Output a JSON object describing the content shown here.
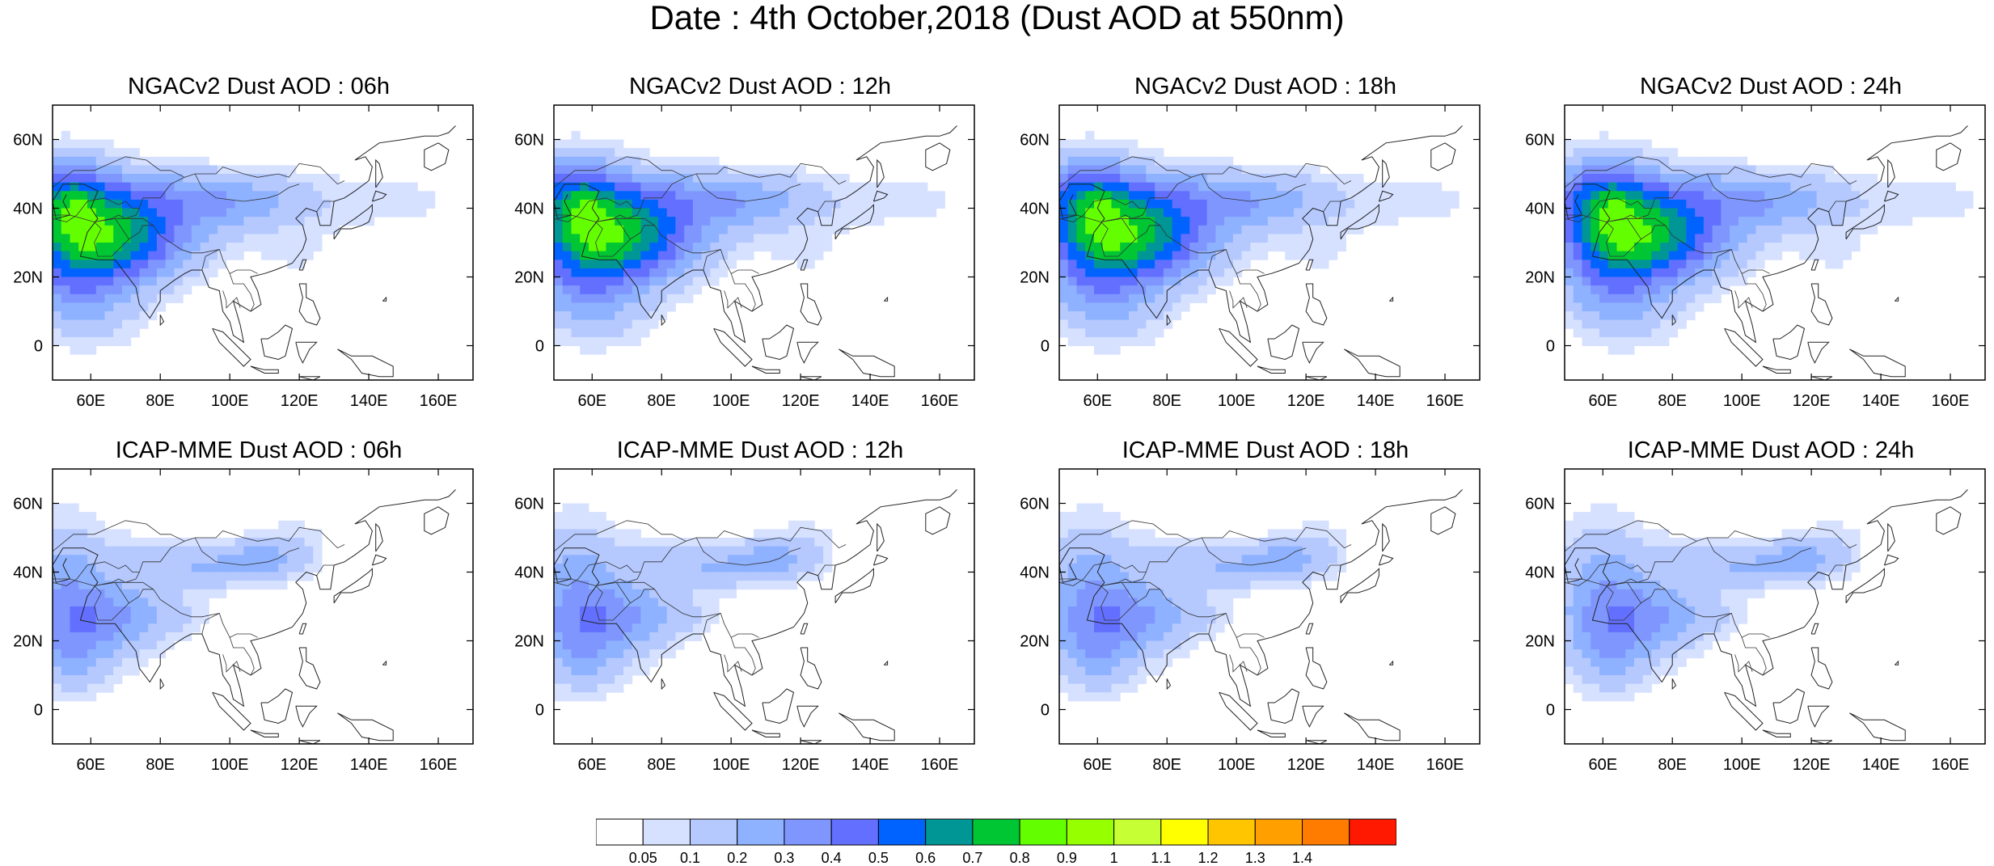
{
  "figure": {
    "title": "Date : 4th October,2018 (Dust AOD at 550nm)"
  },
  "map": {
    "lon_ticks": [
      60,
      80,
      100,
      120,
      140,
      160
    ],
    "lon_labels": [
      "60E",
      "80E",
      "100E",
      "120E",
      "140E",
      "160E"
    ],
    "lat_ticks": [
      0,
      20,
      40,
      60
    ],
    "lat_labels": [
      "0",
      "20N",
      "40N",
      "60N"
    ],
    "lon_range": [
      49,
      170
    ],
    "lat_range": [
      -10,
      70
    ]
  },
  "panels": [
    {
      "title": "NGACv2 Dust AOD : 06h",
      "model": "NGACv2",
      "hour": "06h"
    },
    {
      "title": "NGACv2 Dust AOD : 12h",
      "model": "NGACv2",
      "hour": "12h"
    },
    {
      "title": "NGACv2 Dust AOD : 18h",
      "model": "NGACv2",
      "hour": "18h"
    },
    {
      "title": "NGACv2 Dust AOD : 24h",
      "model": "NGACv2",
      "hour": "24h"
    },
    {
      "title": "ICAP-MME Dust AOD : 06h",
      "model": "ICAP-MME",
      "hour": "06h"
    },
    {
      "title": "ICAP-MME Dust AOD : 12h",
      "model": "ICAP-MME",
      "hour": "12h"
    },
    {
      "title": "ICAP-MME Dust AOD : 18h",
      "model": "ICAP-MME",
      "hour": "18h"
    },
    {
      "title": "ICAP-MME Dust AOD : 24h",
      "model": "ICAP-MME",
      "hour": "24h"
    }
  ],
  "colorbar": {
    "labels": [
      "0.05",
      "0.1",
      "0.2",
      "0.3",
      "0.4",
      "0.5",
      "0.6",
      "0.7",
      "0.8",
      "0.9",
      "1",
      "1.1",
      "1.2",
      "1.3",
      "1.4"
    ],
    "colors": [
      "#ffffff",
      "#d6e1ff",
      "#b5c9ff",
      "#8eb2ff",
      "#7f96ff",
      "#6370ff",
      "#0063ff",
      "#009696",
      "#00c633",
      "#63ff00",
      "#96ff00",
      "#c6ff33",
      "#ffff00",
      "#ffc600",
      "#ffa000",
      "#ff7c00",
      "#ff1900"
    ]
  }
}
